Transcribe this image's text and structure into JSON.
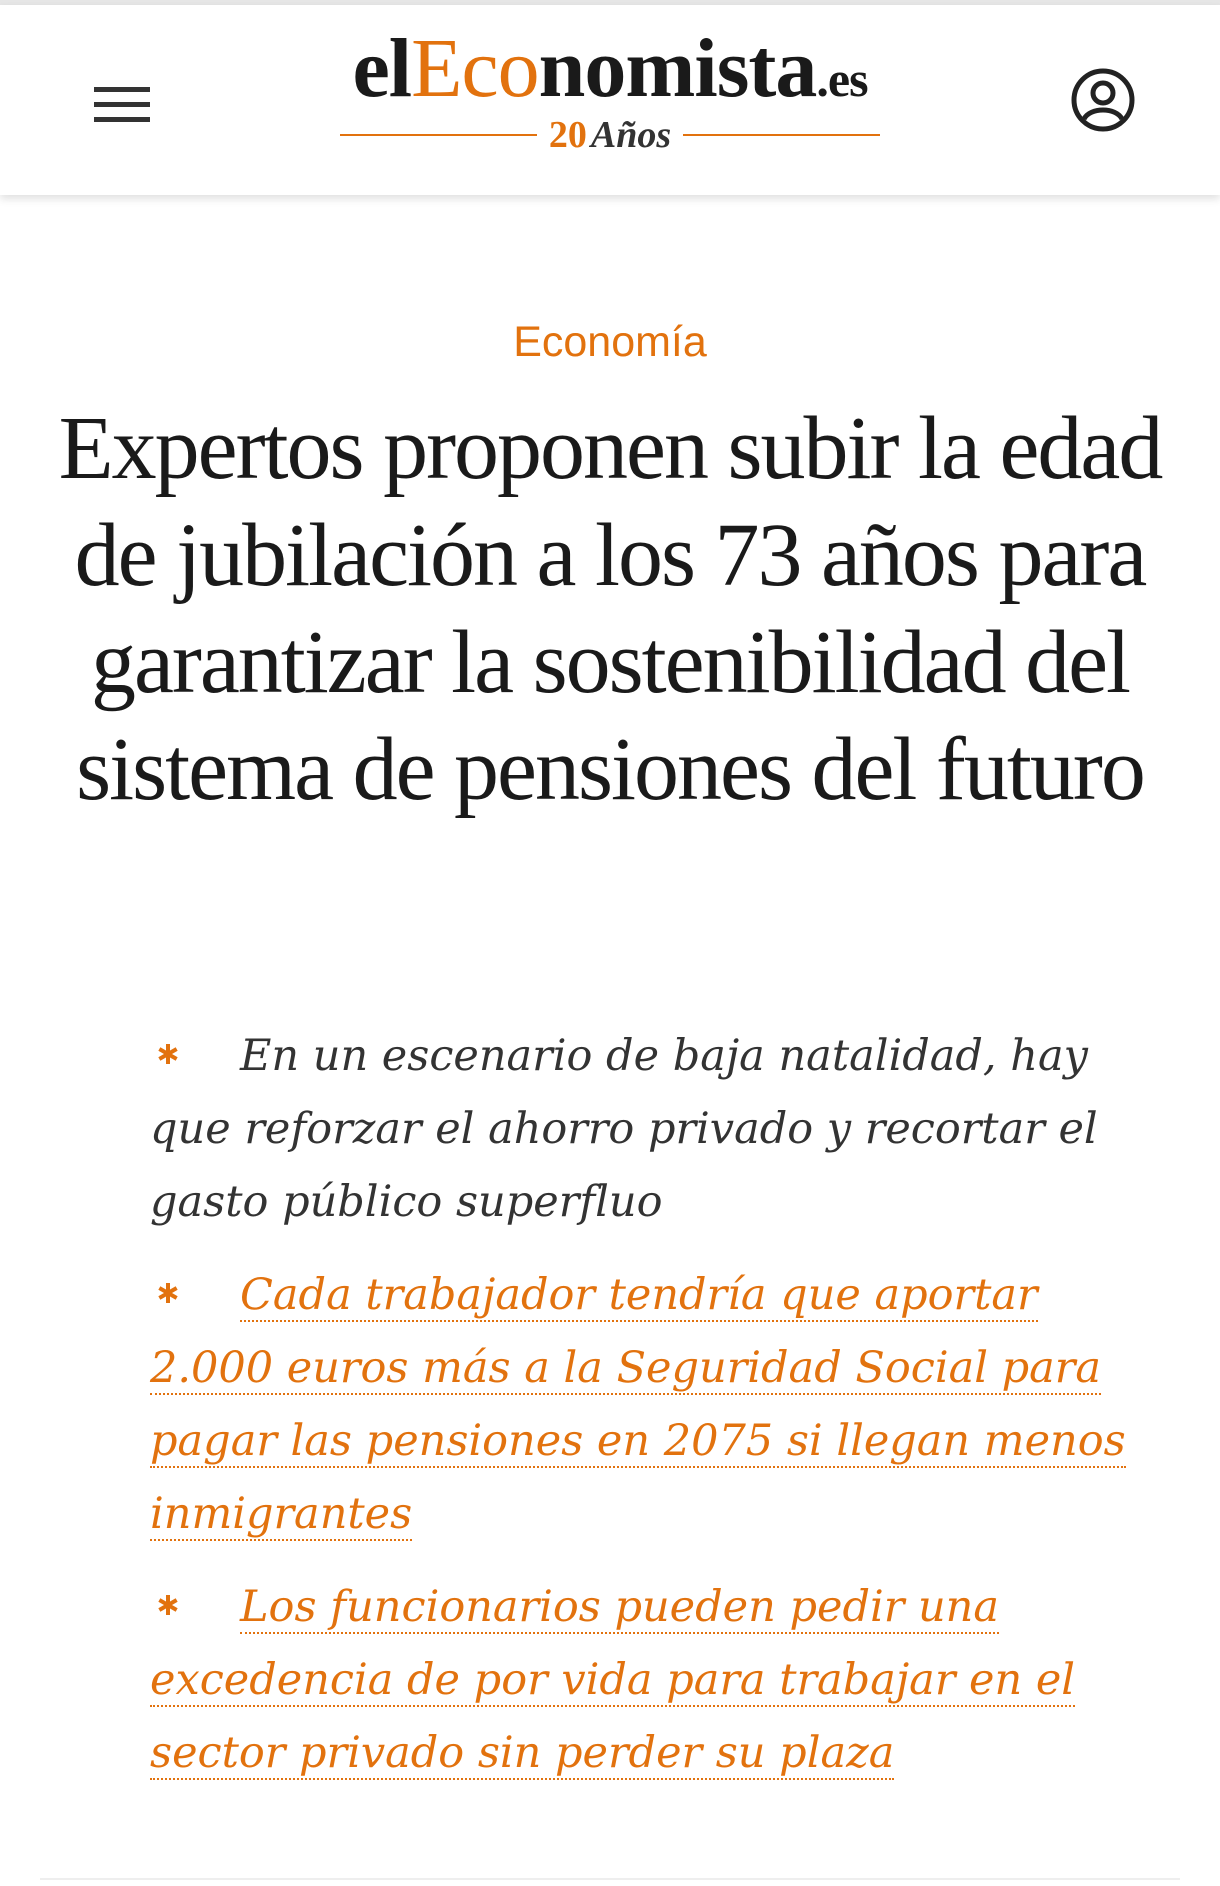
{
  "header": {
    "logo": {
      "parts": [
        "el",
        "Eco",
        "nomista",
        ".es"
      ],
      "tagline": [
        "20",
        "Años"
      ]
    }
  },
  "article": {
    "category": "Economía",
    "headline": "Expertos proponen subir la edad de jubilación a los 73 años para garantizar la sostenibilidad del sistema de pensiones del futuro",
    "bullets": [
      {
        "text": "En un escenario de baja natalidad, hay que reforzar el ahorro privado y recortar el gasto público superfluo",
        "link": false
      },
      {
        "text": "Cada trabajador tendría que aportar 2.000 euros más a la Seguridad Social para pagar las pensiones en 2075 si llegan menos inmigrantes",
        "link": true
      },
      {
        "text": "Los funcionarios pueden pedir una excedencia de por vida para trabajar en el sector privado sin perder su plaza",
        "link": true
      }
    ]
  }
}
